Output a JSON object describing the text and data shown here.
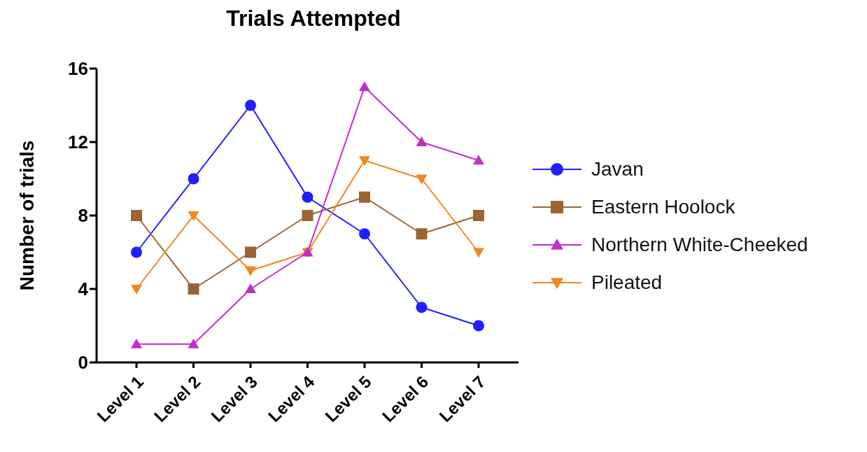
{
  "chart_data": {
    "type": "line",
    "title": "Trials Attempted",
    "ylabel": "Number of trials",
    "categories": [
      "Level 1",
      "Level 2",
      "Level 3",
      "Level 4",
      "Level 5",
      "Level 6",
      "Level 7"
    ],
    "series": [
      {
        "name": "Javan",
        "color": "#1f1fff",
        "marker": "circle",
        "values": [
          6,
          10,
          14,
          9,
          7,
          3,
          2
        ]
      },
      {
        "name": "Eastern Hoolock",
        "color": "#9c6434",
        "marker": "square",
        "values": [
          8,
          4,
          6,
          8,
          9,
          7,
          8
        ]
      },
      {
        "name": "Northern White-Cheeked",
        "color": "#c030c8",
        "marker": "triangle",
        "values": [
          1,
          1,
          4,
          6,
          15,
          12,
          11
        ]
      },
      {
        "name": "Pileated",
        "color": "#f0881e",
        "marker": "triangle-down",
        "values": [
          4,
          8,
          5,
          6,
          11,
          10,
          6
        ]
      }
    ],
    "ylim": [
      0,
      16
    ],
    "yticks": [
      0,
      4,
      8,
      12,
      16
    ],
    "grid": false,
    "legend": "right",
    "line_style": "solid"
  }
}
